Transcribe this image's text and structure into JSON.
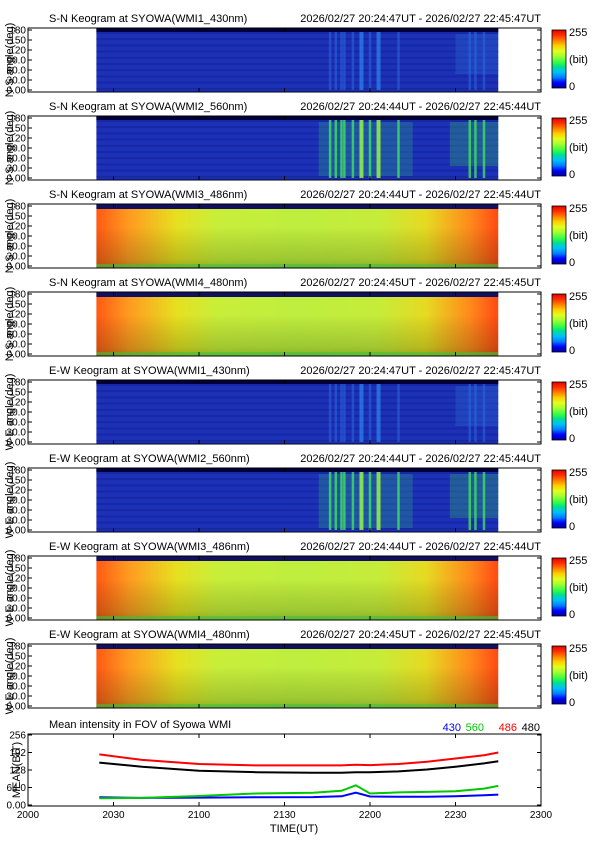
{
  "panels": [
    {
      "title": "S-N Keogram at SYOWA(WMI1_430nm)",
      "time_range": "2026/02/27 20:24:47UT - 2026/02/27 22:45:47UT",
      "ylabel": "N-S angle(deg)",
      "style": "dark",
      "filter": "430nm"
    },
    {
      "title": "S-N Keogram at SYOWA(WMI2_560nm)",
      "time_range": "2026/02/27 20:24:44UT - 2026/02/27 22:45:44UT",
      "ylabel": "N-S angle(deg)",
      "style": "aurora",
      "filter": "560nm"
    },
    {
      "title": "S-N Keogram at SYOWA(WMI3_486nm)",
      "time_range": "2026/02/27 20:24:44UT - 2026/02/27 22:45:44UT",
      "ylabel": "N-S angle(deg)",
      "style": "bright",
      "filter": "486nm"
    },
    {
      "title": "S-N Keogram at SYOWA(WMI4_480nm)",
      "time_range": "2026/02/27 20:24:45UT - 2026/02/27 22:45:45UT",
      "ylabel": "N-S angle(deg)",
      "style": "bright",
      "filter": "480nm"
    },
    {
      "title": "E-W Keogram at SYOWA(WMI1_430nm)",
      "time_range": "2026/02/27 20:24:47UT - 2026/02/27 22:45:47UT",
      "ylabel": "W-E angle(deg)",
      "style": "dark",
      "filter": "430nm"
    },
    {
      "title": "E-W Keogram at SYOWA(WMI2_560nm)",
      "time_range": "2026/02/27 20:24:44UT - 2026/02/27 22:45:44UT",
      "ylabel": "W-E angle(deg)",
      "style": "aurora",
      "filter": "560nm"
    },
    {
      "title": "E-W Keogram at SYOWA(WMI3_486nm)",
      "time_range": "2026/02/27 20:24:44UT - 2026/02/27 22:45:44UT",
      "ylabel": "W-E angle(deg)",
      "style": "bright",
      "filter": "486nm"
    },
    {
      "title": "E-W Keogram at SYOWA(WMI4_480nm)",
      "time_range": "2026/02/27 20:24:45UT - 2026/02/27 22:45:45UT",
      "ylabel": "W-E angle(deg)",
      "style": "bright",
      "filter": "480nm"
    }
  ],
  "angle_ticks": [
    "0.00",
    "30.0",
    "60.0",
    "90.0",
    "120",
    "150",
    "180"
  ],
  "colorbar": {
    "max_label": "255",
    "unit_label": "(bit)",
    "min_label": "0"
  },
  "colormap": [
    "#0000a0",
    "#0000ff",
    "#0080ff",
    "#00c0ff",
    "#00e08c",
    "#40ff40",
    "#a0ff30",
    "#e0ff20",
    "#ffd000",
    "#ff8000",
    "#ff3000",
    "#e00000"
  ],
  "data_start_ut": "2026/02/27 20:24",
  "data_end_ut": "2026/02/27 22:45",
  "aurora_bands_ut": [
    "2146",
    "2148",
    "2150",
    "2151",
    "2154",
    "2157",
    "2200",
    "2203",
    "2210",
    "2235",
    "2237",
    "2240"
  ],
  "chart_data": {
    "type": "line",
    "title": "Mean intensity in FOV of Syowa WMI",
    "xlabel": "TIME(UT)",
    "ylabel": "MEAN(BIT)",
    "x_ticks": [
      "2000",
      "2030",
      "2100",
      "2130",
      "2200",
      "2230",
      "2300"
    ],
    "y_ticks": [
      "0.00",
      "64.0",
      "128",
      "192",
      "256"
    ],
    "ylim": [
      0,
      256
    ],
    "x": [
      "2025",
      "2040",
      "2100",
      "2120",
      "2140",
      "2150",
      "2155",
      "2200",
      "2210",
      "2220",
      "2230",
      "2240",
      "2245"
    ],
    "series": [
      {
        "name": "430",
        "color": "#0000ff",
        "values": [
          28,
          26,
          27,
          28,
          29,
          32,
          45,
          31,
          30,
          30,
          32,
          36,
          38
        ]
      },
      {
        "name": "560",
        "color": "#00c800",
        "values": [
          25,
          26,
          33,
          42,
          45,
          52,
          72,
          42,
          46,
          48,
          50,
          60,
          70
        ]
      },
      {
        "name": "486",
        "color": "#ff0000",
        "values": [
          185,
          165,
          150,
          145,
          145,
          145,
          147,
          146,
          150,
          158,
          170,
          182,
          192
        ]
      },
      {
        "name": "480",
        "color": "#000000",
        "values": [
          155,
          140,
          125,
          120,
          118,
          118,
          120,
          120,
          123,
          130,
          140,
          152,
          160
        ]
      }
    ]
  }
}
